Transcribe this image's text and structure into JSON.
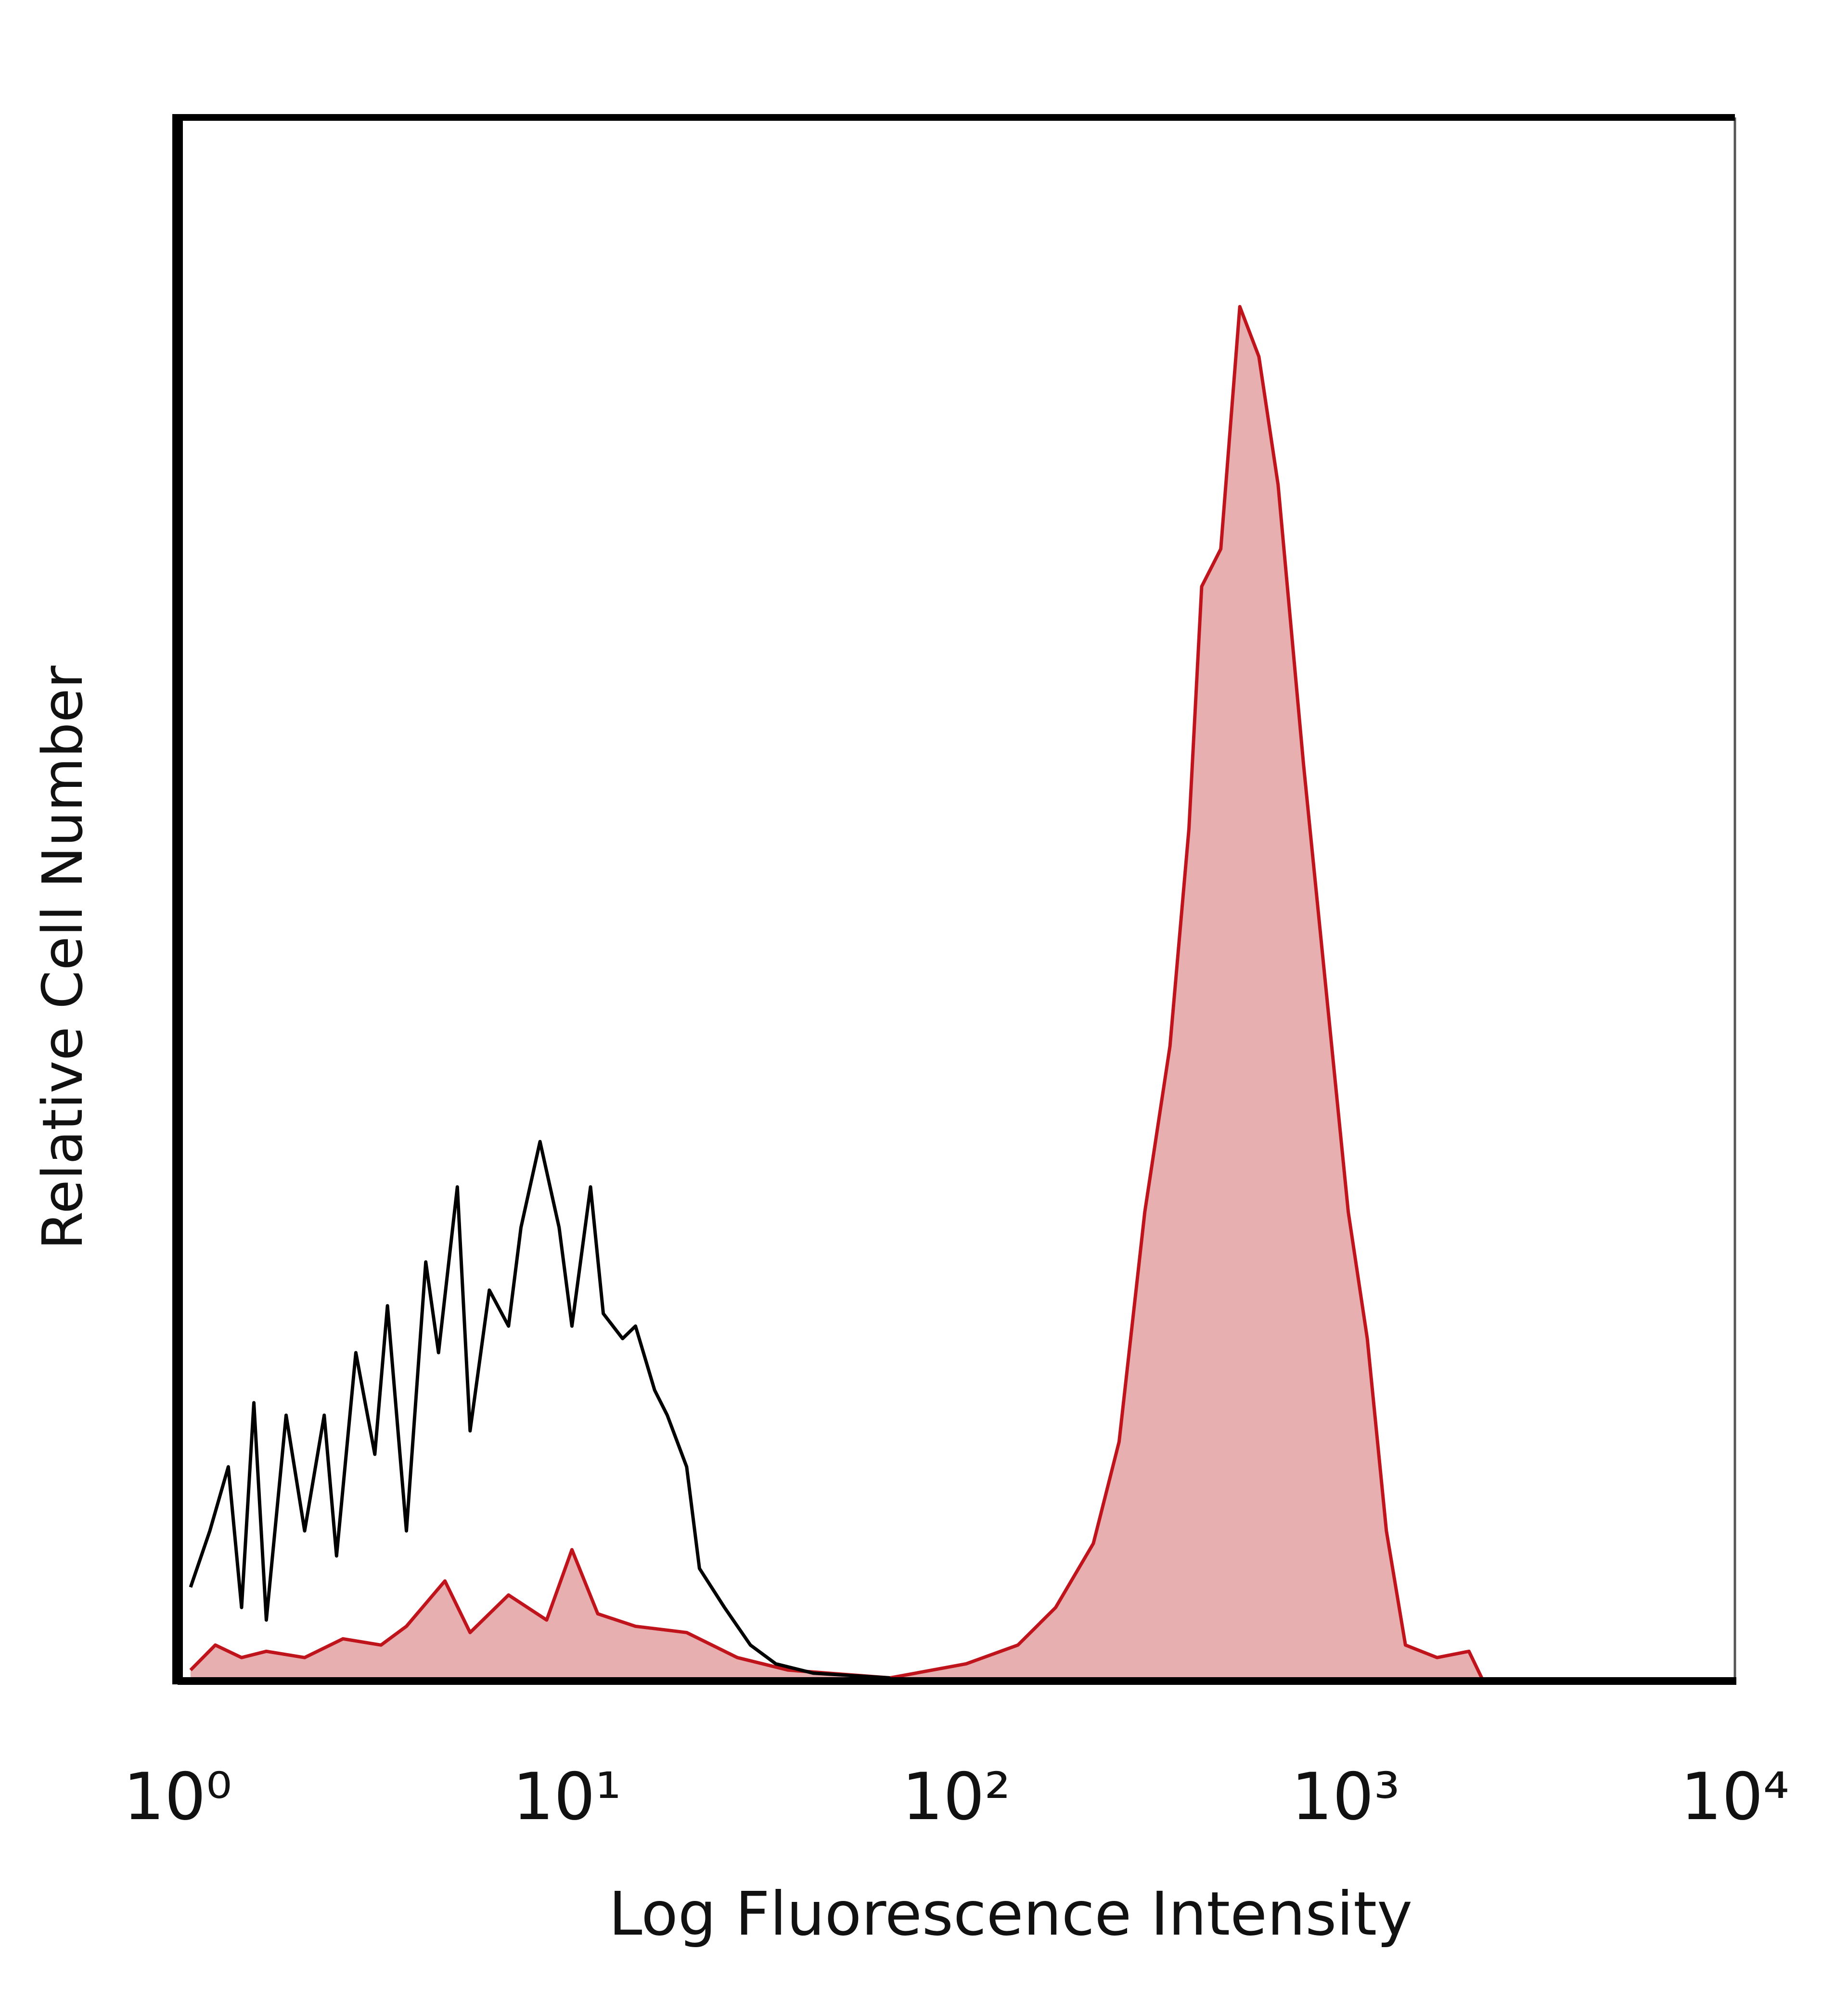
{
  "chart_data": {
    "type": "histogram-overlay",
    "x_label": "Log Fluorescence Intensity",
    "y_label": "Relative Cell Number",
    "log_x": true,
    "xlim": [
      1,
      10000
    ],
    "xticks": [
      {
        "value": 1,
        "label": "10⁰"
      },
      {
        "value": 10,
        "label": "10¹"
      },
      {
        "value": 100,
        "label": "10²"
      },
      {
        "value": 1000,
        "label": "10³"
      },
      {
        "value": 10000,
        "label": "10⁴"
      }
    ],
    "ylim": [
      0,
      100
    ],
    "grid": false,
    "series": [
      {
        "color": "#c0141c",
        "fill": "#e8afb1",
        "x": [
          1.08,
          1.25,
          1.46,
          1.69,
          2.12,
          2.66,
          3.33,
          3.87,
          4.86,
          5.64,
          7.08,
          8.87,
          10.3,
          12.0,
          15.0,
          20.3,
          27.4,
          37.0,
          67.6,
          106,
          144,
          180,
          225,
          262,
          305,
          354,
          396,
          427,
          478,
          535,
          599,
          671,
          780,
          907,
          1016,
          1137,
          1273,
          1425,
          1718,
          2074,
          2237
        ],
        "values": [
          0.7,
          2.3,
          1.5,
          1.9,
          1.5,
          2.7,
          2.3,
          3.5,
          6.4,
          3.1,
          5.5,
          3.9,
          8.4,
          4.3,
          3.5,
          3.1,
          1.5,
          0.7,
          0.2,
          1.1,
          2.3,
          4.7,
          8.8,
          15.3,
          30,
          40.6,
          54.5,
          70,
          72.4,
          87.9,
          84.7,
          76.5,
          58.6,
          42.3,
          30,
          21.9,
          9.6,
          2.3,
          1.5,
          1.9,
          0.2
        ]
      },
      {
        "color": "#000000",
        "x": [
          1.08,
          1.21,
          1.35,
          1.46,
          1.57,
          1.69,
          1.9,
          2.12,
          2.38,
          2.56,
          2.87,
          3.21,
          3.46,
          3.87,
          4.34,
          4.68,
          5.23,
          5.64,
          6.32,
          7.08,
          7.62,
          8.53,
          9.55,
          10.3,
          11.5,
          12.4,
          13.9,
          15.0,
          16.8,
          18.1,
          20.3,
          21.9,
          25.4,
          29.6,
          34.4,
          43.0,
          67.6
        ],
        "values": [
          6,
          9.6,
          13.7,
          4.7,
          17.8,
          3.9,
          17,
          9.6,
          17,
          8,
          21,
          14.5,
          24,
          9.6,
          26.8,
          21,
          31.6,
          16,
          25,
          22.7,
          29,
          34.5,
          29,
          22.7,
          31.6,
          23.5,
          21.9,
          22.7,
          18.6,
          17,
          13.7,
          7.2,
          4.7,
          2.3,
          1.1,
          0.5,
          0.2
        ]
      }
    ]
  }
}
